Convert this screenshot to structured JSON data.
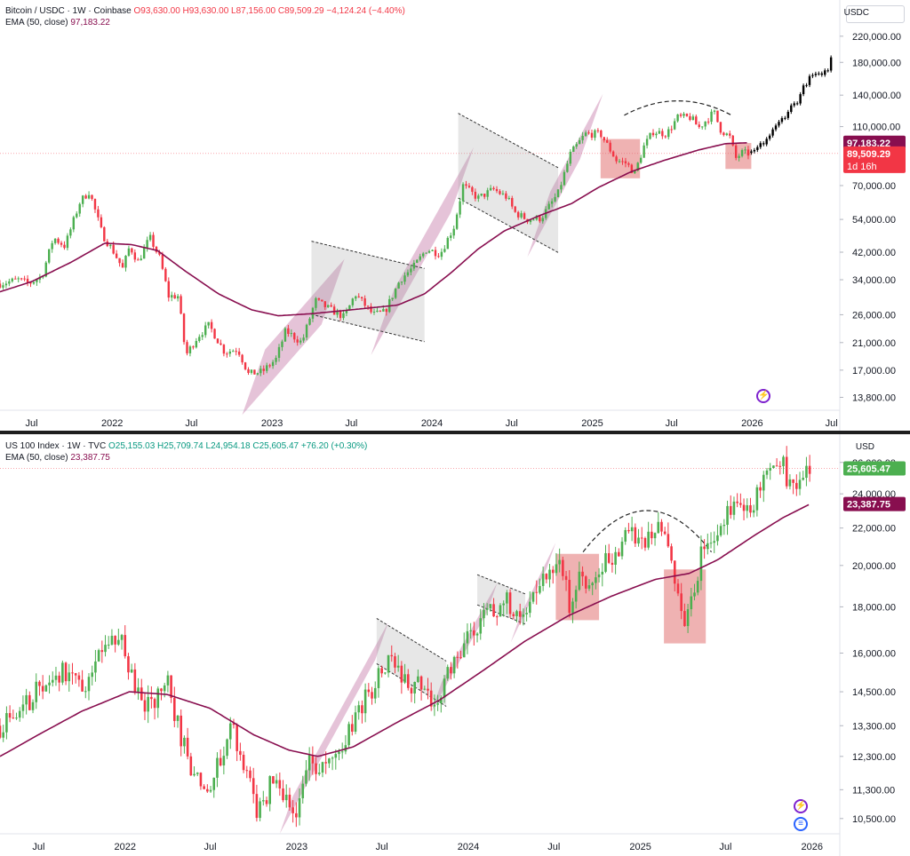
{
  "chart_data": [
    {
      "type": "candlestick",
      "legend": {
        "symbol": "Bitcoin / USDC · 1W · Coinbase",
        "open": "O93,630.00",
        "high": "H93,630.00",
        "low": "L87,156.00",
        "close": "C89,509.29",
        "change": "−4,124.24 (−4.40%)",
        "ema_label": "EMA (50, close)",
        "ema_value": "97,183.22"
      },
      "currency": "USDC",
      "y_scale": "log",
      "ylim": [
        12500,
        240000
      ],
      "y_ticks": [
        220000,
        180000,
        140000,
        110000,
        70000,
        54000,
        42000,
        34000,
        26000,
        21000,
        17000,
        13800
      ],
      "y_tick_labels": [
        "220,000.00",
        "180,000.00",
        "140,000.00",
        "110,000.00",
        "70,000.00",
        "54,000.00",
        "42,000.00",
        "34,000.00",
        "26,000.00",
        "21,000.00",
        "17,000.00",
        "13,800.00"
      ],
      "x_ticks": [
        "Jul",
        "2022",
        "Jul",
        "2023",
        "Jul",
        "2024",
        "Jul",
        "2025",
        "Jul",
        "2026",
        "Jul"
      ],
      "x_tick_dates": [
        "2021-07-01",
        "2022-01-01",
        "2022-07-01",
        "2023-01-01",
        "2023-07-01",
        "2024-01-01",
        "2024-07-01",
        "2025-01-01",
        "2025-07-01",
        "2026-01-01",
        "2026-07-01"
      ],
      "xlim": [
        "2021-04-20",
        "2026-07-20"
      ],
      "price_tags": [
        {
          "value": 97183.22,
          "label": "97,183.22",
          "color": "#880e4f"
        },
        {
          "value": 89509.29,
          "label": "89,509.29",
          "color": "#f23645",
          "sub": "1d 16h"
        }
      ],
      "price_series": [
        [
          "2021-04-20",
          33000
        ],
        [
          "2021-06-01",
          34000
        ],
        [
          "2021-06-25",
          33000
        ],
        [
          "2021-07-25",
          35000
        ],
        [
          "2021-08-20",
          47000
        ],
        [
          "2021-09-15",
          44000
        ],
        [
          "2021-10-20",
          62000
        ],
        [
          "2021-11-10",
          67000
        ],
        [
          "2021-12-10",
          48000
        ],
        [
          "2022-01-05",
          42000
        ],
        [
          "2022-01-25",
          37000
        ],
        [
          "2022-02-10",
          44000
        ],
        [
          "2022-03-01",
          39000
        ],
        [
          "2022-03-28",
          47000
        ],
        [
          "2022-04-20",
          40000
        ],
        [
          "2022-05-10",
          30000
        ],
        [
          "2022-06-01",
          30000
        ],
        [
          "2022-06-18",
          19000
        ],
        [
          "2022-07-15",
          22000
        ],
        [
          "2022-08-10",
          24000
        ],
        [
          "2022-09-15",
          19500
        ],
        [
          "2022-10-15",
          20000
        ],
        [
          "2022-11-08",
          16500
        ],
        [
          "2022-12-10",
          16800
        ],
        [
          "2023-01-10",
          18500
        ],
        [
          "2023-02-01",
          23000
        ],
        [
          "2023-03-10",
          21000
        ],
        [
          "2023-04-10",
          29000
        ],
        [
          "2023-05-15",
          27000
        ],
        [
          "2023-06-15",
          25500
        ],
        [
          "2023-07-10",
          30500
        ],
        [
          "2023-08-20",
          26000
        ],
        [
          "2023-09-15",
          26500
        ],
        [
          "2023-10-20",
          34000
        ],
        [
          "2023-11-20",
          37500
        ],
        [
          "2023-12-20",
          43000
        ],
        [
          "2024-01-20",
          41500
        ],
        [
          "2024-02-20",
          51000
        ],
        [
          "2024-03-12",
          70000
        ],
        [
          "2024-04-15",
          63500
        ],
        [
          "2024-05-20",
          68000
        ],
        [
          "2024-06-20",
          64000
        ],
        [
          "2024-07-08",
          57000
        ],
        [
          "2024-08-05",
          54000
        ],
        [
          "2024-09-06",
          54500
        ],
        [
          "2024-10-15",
          66000
        ],
        [
          "2024-11-12",
          89000
        ],
        [
          "2024-12-16",
          104000
        ],
        [
          "2025-01-20",
          104000
        ],
        [
          "2025-02-25",
          85000
        ],
        [
          "2025-03-20",
          83000
        ],
        [
          "2025-04-08",
          77000
        ],
        [
          "2025-04-28",
          94000
        ],
        [
          "2025-05-20",
          106000
        ],
        [
          "2025-06-20",
          104000
        ],
        [
          "2025-07-15",
          118000
        ],
        [
          "2025-08-14",
          118000
        ],
        [
          "2025-09-01",
          109000
        ],
        [
          "2025-10-06",
          123000
        ],
        [
          "2025-10-20",
          108000
        ],
        [
          "2025-11-12",
          101000
        ],
        [
          "2025-11-24",
          86000
        ],
        [
          "2025-12-08",
          90000
        ],
        [
          "2025-12-23",
          89509
        ]
      ],
      "projection_series": [
        [
          "2025-12-30",
          90000
        ],
        [
          "2026-01-20",
          95000
        ],
        [
          "2026-02-10",
          103000
        ],
        [
          "2026-03-01",
          112000
        ],
        [
          "2026-03-25",
          125000
        ],
        [
          "2026-04-15",
          135000
        ],
        [
          "2026-05-05",
          155000
        ],
        [
          "2026-05-25",
          165000
        ],
        [
          "2026-06-10",
          160000
        ],
        [
          "2026-06-25",
          175000
        ],
        [
          "2026-07-05",
          195000
        ]
      ],
      "ema_series": [
        [
          "2021-04-20",
          31000
        ],
        [
          "2021-07-01",
          33500
        ],
        [
          "2021-10-01",
          39000
        ],
        [
          "2021-12-15",
          45000
        ],
        [
          "2022-02-15",
          44500
        ],
        [
          "2022-04-15",
          42500
        ],
        [
          "2022-06-15",
          36500
        ],
        [
          "2022-09-01",
          30500
        ],
        [
          "2022-11-15",
          27000
        ],
        [
          "2023-01-15",
          25800
        ],
        [
          "2023-04-01",
          26200
        ],
        [
          "2023-07-01",
          27000
        ],
        [
          "2023-10-15",
          28000
        ],
        [
          "2023-12-15",
          30500
        ],
        [
          "2024-02-15",
          36000
        ],
        [
          "2024-04-15",
          43000
        ],
        [
          "2024-06-15",
          49500
        ],
        [
          "2024-09-01",
          55500
        ],
        [
          "2024-11-15",
          61000
        ],
        [
          "2025-01-15",
          69000
        ],
        [
          "2025-04-01",
          78000
        ],
        [
          "2025-06-15",
          85000
        ],
        [
          "2025-09-01",
          92000
        ],
        [
          "2025-11-01",
          96500
        ],
        [
          "2025-12-23",
          97183
        ]
      ],
      "channels": [
        {
          "t0": "2022-11-20",
          "v0": 15500,
          "t1": "2023-05-20",
          "v1": 31000,
          "width": 0.17
        },
        {
          "t0": "2023-09-10",
          "v0": 24500,
          "t1": "2024-03-10",
          "v1": 73000,
          "width": 0.17
        },
        {
          "t0": "2024-09-01",
          "v0": 52000,
          "t1": "2024-12-30",
          "v1": 110000,
          "width": 0.17
        }
      ],
      "flags": [
        {
          "t0": "2023-04-01",
          "v0": 34500,
          "t1": "2023-12-15",
          "v1": 28000,
          "width": 0.19
        },
        {
          "t0": "2024-03-01",
          "v0": 88000,
          "t1": "2024-10-15",
          "v1": 58000,
          "width": 0.22
        }
      ],
      "boxes": [
        {
          "t0": "2025-01-20",
          "t1": "2025-04-20",
          "vlow": 74000,
          "vhigh": 100000
        },
        {
          "t0": "2025-11-01",
          "t1": "2025-12-30",
          "vlow": 79500,
          "vhigh": 97000
        }
      ],
      "arc": {
        "t0": "2025-03-15",
        "t1": "2025-11-15",
        "base": 120000,
        "peak": 134000
      },
      "reference_line": 89509.29
    },
    {
      "type": "candlestick",
      "legend": {
        "symbol": "US 100 Index · 1W · TVC",
        "open": "O25,155.03",
        "high": "H25,709.74",
        "low": "L24,954.18",
        "close": "C25,605.47",
        "change": "+76.20 (+0.30%)",
        "ema_label": "EMA (50, close)",
        "ema_value": "23,387.75"
      },
      "currency": "USD",
      "y_scale": "log",
      "ylim": [
        10100,
        26400
      ],
      "y_ticks": [
        26000,
        24000,
        22000,
        20000,
        18000,
        16000,
        14500,
        13300,
        12300,
        11300,
        10500
      ],
      "y_tick_labels": [
        "26,000.00",
        "24,000.00",
        "22,000.00",
        "20,000.00",
        "18,000.00",
        "16,000.00",
        "14,500.00",
        "13,300.00",
        "12,300.00",
        "11,300.00",
        "10,500.00"
      ],
      "x_ticks": [
        "Jul",
        "2022",
        "Jul",
        "2023",
        "Jul",
        "2024",
        "Jul",
        "2025",
        "Jul",
        "2026"
      ],
      "x_tick_dates": [
        "2021-07-01",
        "2022-01-01",
        "2022-07-01",
        "2023-01-01",
        "2023-07-01",
        "2024-01-01",
        "2024-07-01",
        "2025-01-01",
        "2025-07-01",
        "2026-01-01"
      ],
      "xlim": [
        "2021-04-10",
        "2026-03-01"
      ],
      "price_tags": [
        {
          "value": 25605.47,
          "label": "25,605.47",
          "color": "#4caf50"
        },
        {
          "value": 23387.75,
          "label": "23,387.75",
          "color": "#880e4f"
        }
      ],
      "price_series": [
        [
          "2021-04-10",
          13300
        ],
        [
          "2021-05-15",
          13500
        ],
        [
          "2021-06-20",
          14400
        ],
        [
          "2021-08-01",
          15000
        ],
        [
          "2021-09-10",
          15400
        ],
        [
          "2021-10-05",
          14600
        ],
        [
          "2021-11-20",
          16600
        ],
        [
          "2021-12-25",
          16300
        ],
        [
          "2022-01-25",
          14500
        ],
        [
          "2022-02-25",
          14000
        ],
        [
          "2022-03-28",
          15000
        ],
        [
          "2022-04-25",
          13300
        ],
        [
          "2022-05-20",
          11800
        ],
        [
          "2022-06-16",
          11200
        ],
        [
          "2022-07-15",
          12000
        ],
        [
          "2022-08-16",
          13500
        ],
        [
          "2022-09-30",
          11000
        ],
        [
          "2022-10-15",
          10700
        ],
        [
          "2022-11-15",
          11700
        ],
        [
          "2022-12-28",
          10700
        ],
        [
          "2023-01-30",
          12200
        ],
        [
          "2023-03-10",
          11900
        ],
        [
          "2023-04-15",
          13000
        ],
        [
          "2023-05-30",
          14300
        ],
        [
          "2023-07-15",
          15700
        ],
        [
          "2023-08-20",
          14800
        ],
        [
          "2023-09-20",
          14700
        ],
        [
          "2023-10-25",
          14100
        ],
        [
          "2023-12-01",
          15900
        ],
        [
          "2024-01-20",
          17300
        ],
        [
          "2024-02-20",
          17900
        ],
        [
          "2024-03-28",
          18300
        ],
        [
          "2024-04-19",
          17000
        ],
        [
          "2024-05-20",
          18600
        ],
        [
          "2024-07-10",
          20600
        ],
        [
          "2024-08-05",
          18000
        ],
        [
          "2024-08-30",
          19600
        ],
        [
          "2024-09-10",
          18900
        ],
        [
          "2024-10-15",
          20200
        ],
        [
          "2024-11-10",
          20800
        ],
        [
          "2024-12-16",
          21900
        ],
        [
          "2025-01-10",
          21000
        ],
        [
          "2025-02-18",
          22100
        ],
        [
          "2025-03-12",
          19300
        ],
        [
          "2025-04-07",
          17000
        ],
        [
          "2025-04-28",
          19400
        ],
        [
          "2025-05-20",
          21300
        ],
        [
          "2025-06-25",
          22300
        ],
        [
          "2025-07-25",
          23300
        ],
        [
          "2025-08-20",
          23300
        ],
        [
          "2025-09-20",
          24500
        ],
        [
          "2025-10-29",
          26000
        ],
        [
          "2025-11-20",
          24200
        ],
        [
          "2025-12-10",
          25600
        ],
        [
          "2025-12-28",
          25605
        ]
      ],
      "ema_series": [
        [
          "2021-04-10",
          12300
        ],
        [
          "2021-07-01",
          13000
        ],
        [
          "2021-10-01",
          13800
        ],
        [
          "2022-01-10",
          14500
        ],
        [
          "2022-04-01",
          14400
        ],
        [
          "2022-07-01",
          13900
        ],
        [
          "2022-10-01",
          13000
        ],
        [
          "2022-12-15",
          12500
        ],
        [
          "2023-02-15",
          12300
        ],
        [
          "2023-05-01",
          12600
        ],
        [
          "2023-08-01",
          13400
        ],
        [
          "2023-11-01",
          14200
        ],
        [
          "2024-02-01",
          15300
        ],
        [
          "2024-05-01",
          16500
        ],
        [
          "2024-08-01",
          17600
        ],
        [
          "2024-11-01",
          18500
        ],
        [
          "2025-02-01",
          19300
        ],
        [
          "2025-04-15",
          19600
        ],
        [
          "2025-06-15",
          20300
        ],
        [
          "2025-09-01",
          21600
        ],
        [
          "2025-11-01",
          22600
        ],
        [
          "2025-12-28",
          23388
        ]
      ],
      "channels": [
        {
          "t0": "2022-12-10",
          "v0": 10600,
          "t1": "2023-07-01",
          "v1": 16500,
          "width": 0.1
        },
        {
          "t0": "2023-10-25",
          "v0": 14300,
          "t1": "2024-02-20",
          "v1": 18400,
          "width": 0.08
        },
        {
          "t0": "2024-04-10",
          "v0": 17000,
          "t1": "2024-06-25",
          "v1": 20500,
          "width": 0.07
        }
      ],
      "flags": [
        {
          "t0": "2023-06-20",
          "v0": 16500,
          "t1": "2023-11-15",
          "v1": 14800,
          "width": 0.12
        },
        {
          "t0": "2024-01-20",
          "v0": 18800,
          "t1": "2024-05-01",
          "v1": 17900,
          "width": 0.08
        }
      ],
      "boxes": [
        {
          "t0": "2024-07-05",
          "t1": "2024-10-05",
          "vlow": 17400,
          "vhigh": 20600
        },
        {
          "t0": "2025-02-20",
          "t1": "2025-05-20",
          "vlow": 16400,
          "vhigh": 19800
        }
      ],
      "arc": {
        "t0": "2024-09-01",
        "t1": "2025-06-01",
        "base": 20700,
        "peak": 23000
      },
      "reference_line": 25605.47
    }
  ],
  "panel1": {
    "unit_label": "USDC",
    "tag_time": "1d 16h"
  },
  "panel2": {
    "unit_label": "USD"
  },
  "icons": {
    "top_icon": "lightning-icon",
    "bottom_icon_1": "lightning-icon",
    "bottom_icon_2": "flag-icon"
  }
}
